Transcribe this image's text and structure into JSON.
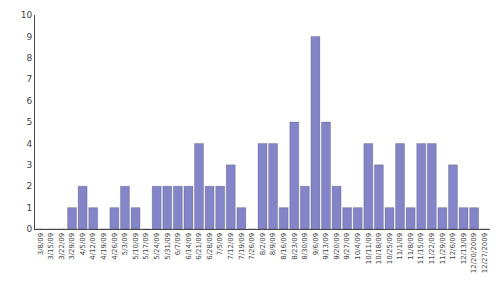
{
  "chart_data": {
    "type": "bar",
    "categories": [
      "3/8/09",
      "3/15/09",
      "3/22/09",
      "3/29/09",
      "4/5/09",
      "4/12/09",
      "4/19/09",
      "4/26/09",
      "5/3/09",
      "5/10/09",
      "5/17/09",
      "5/24/09",
      "5/31/09",
      "6/7/09",
      "6/14/09",
      "6/21/09",
      "6/28/09",
      "7/5/09",
      "7/12/09",
      "7/19/09",
      "7/26/09",
      "8/2/09",
      "8/9/09",
      "8/16/09",
      "8/23/09",
      "8/30/09",
      "9/6/09",
      "9/13/09",
      "9/20/09",
      "9/27/09",
      "10/4/09",
      "10/11/09",
      "10/18/09",
      "10/25/09",
      "11/1/09",
      "11/8/09",
      "11/15/09",
      "11/22/09",
      "11/29/09",
      "12/6/09",
      "12/13/09",
      "12/20/2009",
      "12/27/2009"
    ],
    "values": [
      0,
      0,
      0,
      1,
      2,
      1,
      0,
      1,
      2,
      1,
      0,
      2,
      2,
      2,
      2,
      4,
      2,
      2,
      3,
      1,
      0,
      4,
      4,
      1,
      5,
      2,
      9,
      5,
      2,
      1,
      1,
      4,
      3,
      1,
      4,
      1,
      4,
      4,
      1,
      3,
      1,
      1,
      0
    ],
    "color": "#8484c8",
    "ylim": [
      0,
      10
    ],
    "yticks": [
      0,
      1,
      2,
      3,
      4,
      5,
      6,
      7,
      8,
      9,
      10
    ],
    "grid": false
  }
}
